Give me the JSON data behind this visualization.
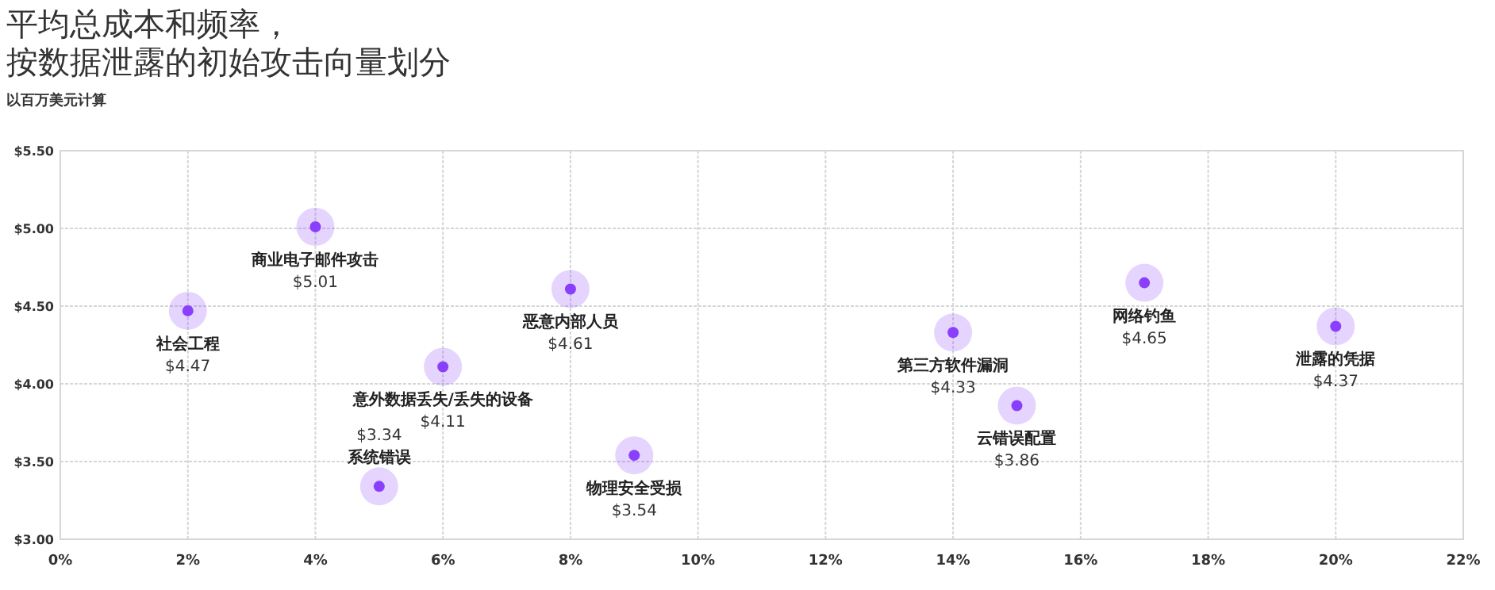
{
  "chart_data": {
    "type": "scatter",
    "title": "平均总成本和频率，按数据泄露的初始攻击向量划分",
    "subtitle": "以百万美元计算",
    "series": [
      {
        "name": "社会工程",
        "color": "#8a3ffc",
        "x": [
          2
        ],
        "values": [
          4.47
        ],
        "value_labels": [
          "$4.47"
        ]
      },
      {
        "name": "商业电子邮件攻击",
        "color": "#8a3ffc",
        "x": [
          4
        ],
        "values": [
          5.01
        ],
        "value_labels": [
          "$5.01"
        ]
      },
      {
        "name": "系统错误",
        "color": "#8a3ffc",
        "x": [
          5
        ],
        "values": [
          3.34
        ],
        "value_labels": [
          "$3.34"
        ]
      },
      {
        "name": "意外数据丢失/丢失的设备",
        "color": "#8a3ffc",
        "x": [
          6
        ],
        "values": [
          4.11
        ],
        "value_labels": [
          "$4.11"
        ]
      },
      {
        "name": "恶意内部人员",
        "color": "#8a3ffc",
        "x": [
          8
        ],
        "values": [
          4.61
        ],
        "value_labels": [
          "$4.61"
        ]
      },
      {
        "name": "物理安全受损",
        "color": "#8a3ffc",
        "x": [
          9
        ],
        "values": [
          3.54
        ],
        "value_labels": [
          "$3.54"
        ]
      },
      {
        "name": "第三方软件漏洞",
        "color": "#8a3ffc",
        "x": [
          14
        ],
        "values": [
          4.33
        ],
        "value_labels": [
          "$4.33"
        ]
      },
      {
        "name": "云错误配置",
        "color": "#8a3ffc",
        "x": [
          15
        ],
        "values": [
          3.86
        ],
        "value_labels": [
          "$3.86"
        ]
      },
      {
        "name": "网络钓鱼",
        "color": "#8a3ffc",
        "x": [
          17
        ],
        "values": [
          4.65
        ],
        "value_labels": [
          "$4.65"
        ]
      },
      {
        "name": "泄露的凭据",
        "color": "#8a3ffc",
        "x": [
          20
        ],
        "values": [
          4.37
        ],
        "value_labels": [
          "$4.37"
        ]
      }
    ],
    "xlim": [
      0,
      22
    ],
    "xticks": [
      {
        "value": 0,
        "label": "0%"
      },
      {
        "value": 2,
        "label": "2%"
      },
      {
        "value": 4,
        "label": "4%"
      },
      {
        "value": 6,
        "label": "6%"
      },
      {
        "value": 8,
        "label": "8%"
      },
      {
        "value": 10,
        "label": "10%"
      },
      {
        "value": 12,
        "label": "12%"
      },
      {
        "value": 14,
        "label": "14%"
      },
      {
        "value": 16,
        "label": "16%"
      },
      {
        "value": 18,
        "label": "18%"
      },
      {
        "value": 20,
        "label": "20%"
      },
      {
        "value": 22,
        "label": "22%"
      }
    ],
    "ylim": [
      3,
      5.5
    ],
    "yticks": [
      {
        "value": 3,
        "label": "$3.00"
      },
      {
        "value": 3.5,
        "label": "$3.50"
      },
      {
        "value": 4,
        "label": "$4.00"
      },
      {
        "value": 4.5,
        "label": "$4.50"
      },
      {
        "value": 5,
        "label": "$5.00"
      },
      {
        "value": 5.5,
        "label": "$5.50"
      }
    ],
    "grid": true,
    "marker": "circle",
    "legend": false
  }
}
